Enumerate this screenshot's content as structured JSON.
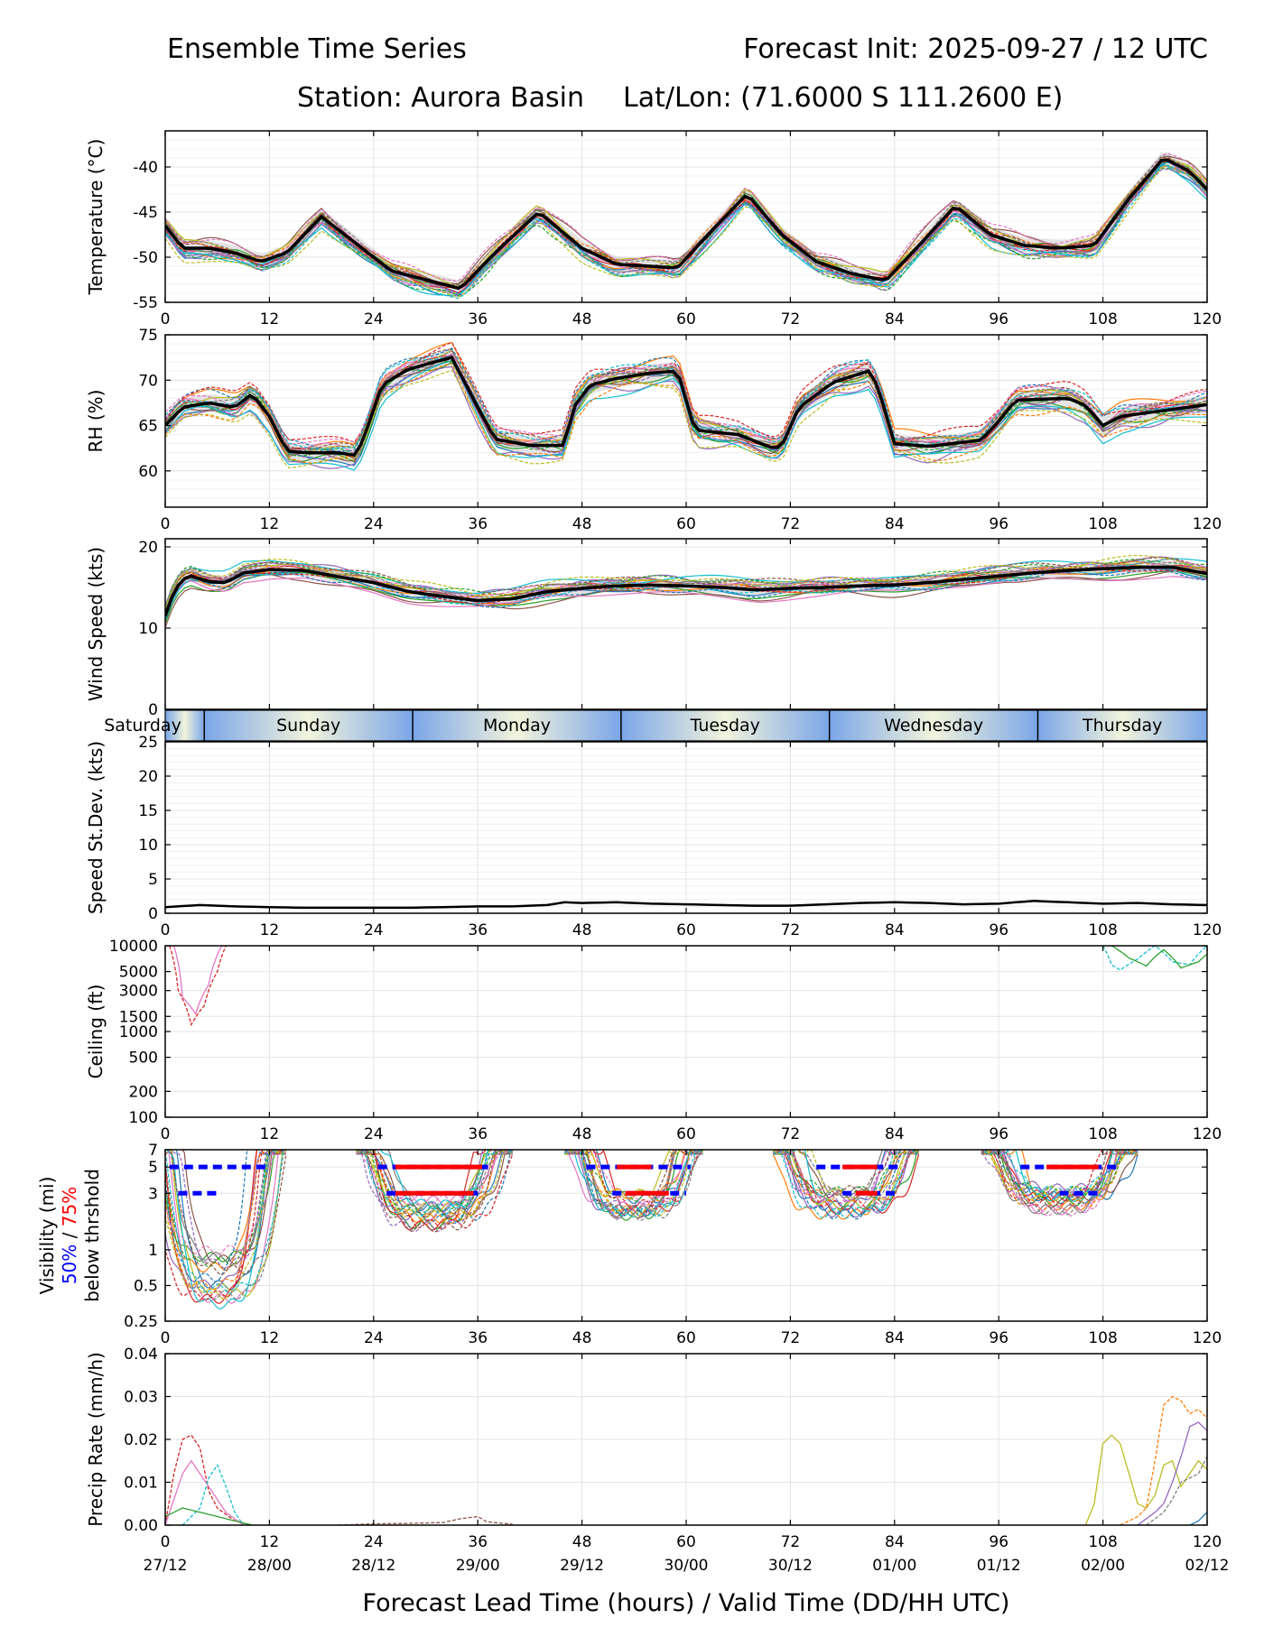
{
  "header": {
    "title_left": "Ensemble Time Series",
    "title_right": "Forecast Init: 2025-09-27 / 12 UTC",
    "station": "Station: Aurora Basin",
    "latlon": "Lat/Lon: (71.6000 S 111.2600 E)"
  },
  "x_axis": {
    "label": "Forecast Lead Time (hours) / Valid Time (DD/HH UTC)",
    "range": [
      0,
      120
    ],
    "ticks": [
      0,
      12,
      24,
      36,
      48,
      60,
      72,
      84,
      96,
      108,
      120
    ],
    "valid_time_labels": [
      "27/12",
      "28/00",
      "28/12",
      "29/00",
      "29/12",
      "30/00",
      "30/12",
      "01/00",
      "01/12",
      "02/00",
      "02/12"
    ]
  },
  "day_band": {
    "days": [
      {
        "label": "Saturday",
        "start": 0,
        "end": 4.5
      },
      {
        "label": "Sunday",
        "start": 4.5,
        "end": 28.5
      },
      {
        "label": "Monday",
        "start": 28.5,
        "end": 52.5
      },
      {
        "label": "Tuesday",
        "start": 52.5,
        "end": 76.5
      },
      {
        "label": "Wednesday",
        "start": 76.5,
        "end": 100.5
      },
      {
        "label": "Thursday",
        "start": 100.5,
        "end": 120
      }
    ]
  },
  "colors": {
    "mean_line": "#000000",
    "p50_marker": "#0000ff",
    "p75_marker": "#ff0000",
    "band_blue": "#7aa6e8",
    "band_cream": "#f2f4dc",
    "members": [
      "#1f77b4",
      "#ff7f0e",
      "#2ca02c",
      "#d62728",
      "#9467bd",
      "#8c564b",
      "#e377c2",
      "#7f7f7f",
      "#bcbd22",
      "#17becf"
    ]
  },
  "chart_data": [
    {
      "type": "line",
      "id": "temperature",
      "ylabel": "Temperature (°C)",
      "ylim": [
        -55,
        -36
      ],
      "yticks": [
        -55,
        -50,
        -45,
        -40
      ],
      "mean": {
        "x": [
          0,
          2,
          5,
          8,
          11,
          14,
          18,
          22,
          26,
          30,
          34,
          38,
          43,
          48,
          52,
          56,
          59,
          63,
          67,
          71,
          75,
          79,
          83,
          87,
          91,
          95,
          99,
          103,
          107,
          111,
          115,
          118,
          120
        ],
        "y": [
          -46.5,
          -49,
          -49,
          -49.5,
          -50.5,
          -49.5,
          -45.5,
          -48.5,
          -51.5,
          -52.5,
          -53.5,
          -49.5,
          -45,
          -49,
          -50.8,
          -51,
          -51.2,
          -47,
          -43,
          -47.5,
          -50.5,
          -51.8,
          -52.6,
          -48.5,
          -44.3,
          -47.5,
          -48.7,
          -49,
          -48.7,
          -43.5,
          -39,
          -40.5,
          -42.5
        ]
      },
      "members_count": 20,
      "member_spread": 1.6
    },
    {
      "type": "line",
      "id": "rh",
      "ylabel": "RH (%)",
      "ylim": [
        56,
        75
      ],
      "yticks": [
        60,
        65,
        70,
        75
      ],
      "mean": {
        "x": [
          0,
          2,
          5,
          8,
          10,
          12,
          14,
          16,
          20,
          22,
          23,
          25,
          28,
          31,
          33,
          36,
          38,
          42,
          46,
          47,
          49,
          52,
          56,
          59,
          61,
          66,
          70,
          71,
          73,
          77,
          81,
          82,
          84,
          88,
          94,
          96,
          98,
          104,
          106,
          108,
          110,
          120
        ],
        "y": [
          65,
          67,
          67.5,
          67,
          68.5,
          66,
          62.2,
          62,
          62,
          61.7,
          64,
          69.5,
          71.2,
          72,
          72.5,
          67,
          63.5,
          62.8,
          62.8,
          67,
          69.5,
          70.2,
          70.8,
          71,
          64.5,
          64,
          62.5,
          62.7,
          67,
          69.8,
          71,
          69.5,
          63,
          62.7,
          63.4,
          65.5,
          67.8,
          68,
          67.2,
          65,
          66,
          67.3
        ]
      },
      "members_count": 20,
      "member_spread": 1.8
    },
    {
      "type": "line",
      "id": "wind_speed",
      "ylabel": "Wind Speed (kts)",
      "ylim": [
        0,
        21
      ],
      "yticks": [
        0,
        10,
        20
      ],
      "mean": {
        "x": [
          0,
          1,
          2,
          3,
          5,
          7,
          9,
          12,
          16,
          20,
          24,
          28,
          32,
          36,
          40,
          44,
          48,
          52,
          56,
          60,
          64,
          68,
          72,
          76,
          80,
          84,
          88,
          92,
          96,
          100,
          104,
          108,
          112,
          116,
          120
        ],
        "y": [
          11.5,
          14.5,
          16,
          16.4,
          15.7,
          15.6,
          16.8,
          17.2,
          17.1,
          16.3,
          15.6,
          14.5,
          13.9,
          13.4,
          13.6,
          14.5,
          14.9,
          15.2,
          15.3,
          15.2,
          15,
          14.7,
          14.9,
          15,
          15.2,
          15.3,
          15.6,
          16,
          16.4,
          16.8,
          17.1,
          17.3,
          17.5,
          17.5,
          16.7
        ]
      },
      "members_count": 20,
      "member_spread": 1.3
    },
    {
      "type": "line",
      "id": "speed_stdev",
      "ylabel": "Speed St.Dev. (kts)",
      "ylim": [
        0,
        25
      ],
      "yticks": [
        0,
        5,
        10,
        15,
        20,
        25
      ],
      "values": {
        "x": [
          0,
          4,
          8,
          12,
          16,
          20,
          24,
          28,
          32,
          36,
          40,
          44,
          46,
          48,
          52,
          56,
          60,
          64,
          68,
          72,
          76,
          80,
          84,
          88,
          92,
          96,
          100,
          104,
          108,
          112,
          116,
          120
        ],
        "y": [
          0.9,
          1.2,
          1.0,
          0.9,
          0.8,
          0.8,
          0.8,
          0.8,
          0.9,
          1.0,
          1.0,
          1.2,
          1.6,
          1.5,
          1.6,
          1.4,
          1.3,
          1.2,
          1.1,
          1.1,
          1.3,
          1.5,
          1.6,
          1.5,
          1.3,
          1.4,
          1.8,
          1.6,
          1.4,
          1.5,
          1.3,
          1.2
        ]
      }
    },
    {
      "type": "line",
      "id": "ceiling",
      "ylabel": "Ceiling (ft)",
      "yscale": "log",
      "ylim": [
        100,
        10000
      ],
      "yticks": [
        100,
        200,
        500,
        1000,
        1500,
        3000,
        5000,
        10000
      ],
      "segments": [
        {
          "x": [
            0.5,
            1.5,
            3,
            4.5,
            6,
            7
          ],
          "y": [
            10000,
            3000,
            1200,
            2000,
            5000,
            10000
          ]
        },
        {
          "x": [
            1,
            2,
            3.5,
            5,
            6.5
          ],
          "y": [
            10000,
            2500,
            1600,
            3500,
            10000
          ]
        },
        {
          "x": [
            108,
            109,
            110,
            112,
            114,
            116,
            118,
            120
          ],
          "y": [
            10000,
            6000,
            5200,
            7000,
            10000,
            6500,
            6000,
            10000
          ]
        },
        {
          "x": [
            109,
            111,
            113,
            115,
            117,
            119,
            120
          ],
          "y": [
            10000,
            7200,
            5800,
            9000,
            5500,
            6500,
            8000
          ]
        }
      ]
    },
    {
      "type": "line",
      "id": "visibility",
      "ylabel": "Visibility (mi)",
      "ylabel_p50": "50%",
      "ylabel_sep": " / ",
      "ylabel_p75": "75%",
      "ylabel_tail": "below thrshold",
      "yscale": "log",
      "ylim": [
        0.25,
        7
      ],
      "yticks": [
        0.25,
        0.5,
        1,
        3,
        5,
        7
      ],
      "dips": [
        {
          "start": 0,
          "end": 12,
          "min": 0.3
        },
        {
          "start": 24,
          "end": 38,
          "min": 1.5
        },
        {
          "start": 48,
          "end": 60,
          "min": 1.8
        },
        {
          "start": 72,
          "end": 85,
          "min": 1.9
        },
        {
          "start": 96,
          "end": 110,
          "min": 2.1
        }
      ],
      "threshold_bars": [
        {
          "level": 5,
          "pct": "50%",
          "start": 0.5,
          "end": 12
        },
        {
          "level": 3,
          "pct": "50%",
          "start": 1.5,
          "end": 6.5
        },
        {
          "level": 5,
          "pct": "50%",
          "start": 24.5,
          "end": 37.5
        },
        {
          "level": 5,
          "pct": "75%",
          "start": 26.5,
          "end": 36.5
        },
        {
          "level": 3,
          "pct": "50%",
          "start": 25.5,
          "end": 36
        },
        {
          "level": 3,
          "pct": "75%",
          "start": 26.5,
          "end": 35.5
        },
        {
          "level": 5,
          "pct": "50%",
          "start": 48.5,
          "end": 60.5
        },
        {
          "level": 5,
          "pct": "75%",
          "start": 52,
          "end": 56
        },
        {
          "level": 3,
          "pct": "50%",
          "start": 51.5,
          "end": 60
        },
        {
          "level": 3,
          "pct": "75%",
          "start": 53,
          "end": 58
        },
        {
          "level": 5,
          "pct": "50%",
          "start": 75,
          "end": 84.5
        },
        {
          "level": 5,
          "pct": "75%",
          "start": 78,
          "end": 82
        },
        {
          "level": 3,
          "pct": "50%",
          "start": 78,
          "end": 84
        },
        {
          "level": 3,
          "pct": "75%",
          "start": 79.5,
          "end": 82
        },
        {
          "level": 5,
          "pct": "50%",
          "start": 98.5,
          "end": 109.5
        },
        {
          "level": 5,
          "pct": "75%",
          "start": 101.5,
          "end": 107.5
        },
        {
          "level": 3,
          "pct": "50%",
          "start": 103,
          "end": 108
        }
      ]
    },
    {
      "type": "line",
      "id": "precip",
      "ylabel": "Precip Rate (mm/h)",
      "ylim": [
        0,
        0.04
      ],
      "yticks": [
        0,
        0.01,
        0.02,
        0.03,
        0.04
      ],
      "ytick_labels": [
        "0.00",
        "0.01",
        "0.02",
        "0.03",
        "0.04"
      ],
      "segments": [
        {
          "x": [
            0,
            1,
            2,
            3,
            4,
            5,
            6,
            8,
            10
          ],
          "y": [
            0,
            0.012,
            0.02,
            0.021,
            0.018,
            0.008,
            0.004,
            0.001,
            0
          ]
        },
        {
          "x": [
            0,
            1,
            2,
            3,
            5,
            7,
            9
          ],
          "y": [
            0,
            0.006,
            0.012,
            0.015,
            0.009,
            0.003,
            0
          ]
        },
        {
          "x": [
            2,
            4,
            5,
            6,
            7,
            8,
            9
          ],
          "y": [
            0,
            0.004,
            0.011,
            0.014,
            0.009,
            0.003,
            0
          ]
        },
        {
          "x": [
            0,
            2,
            4,
            6,
            8,
            10
          ],
          "y": [
            0.002,
            0.004,
            0.003,
            0.002,
            0.001,
            0
          ]
        },
        {
          "x": [
            20,
            24,
            28,
            32,
            34,
            36,
            37,
            40
          ],
          "y": [
            0,
            0.0003,
            0.0004,
            0.0006,
            0.0015,
            0.002,
            0.0008,
            0.0002
          ]
        },
        {
          "x": [
            106,
            107,
            108,
            109,
            110,
            111,
            112,
            113,
            114,
            115,
            116,
            117,
            118,
            119,
            120
          ],
          "y": [
            0,
            0.005,
            0.019,
            0.021,
            0.019,
            0.012,
            0.005,
            0.004,
            0.007,
            0.014,
            0.015,
            0.009,
            0.012,
            0.015,
            0.013
          ]
        },
        {
          "x": [
            110,
            112,
            113,
            114,
            115,
            116,
            117,
            118,
            119,
            120
          ],
          "y": [
            0,
            0.002,
            0.004,
            0.015,
            0.028,
            0.03,
            0.029,
            0.026,
            0.027,
            0.025
          ]
        },
        {
          "x": [
            112,
            114,
            115,
            116,
            117,
            118,
            119,
            120
          ],
          "y": [
            0,
            0.003,
            0.005,
            0.01,
            0.016,
            0.023,
            0.024,
            0.022
          ]
        },
        {
          "x": [
            113,
            115,
            116,
            117,
            118,
            119,
            120
          ],
          "y": [
            0,
            0.003,
            0.006,
            0.01,
            0.011,
            0.012,
            0.016
          ]
        },
        {
          "x": [
            118,
            119,
            120
          ],
          "y": [
            0,
            0.001,
            0.003
          ]
        }
      ]
    }
  ]
}
